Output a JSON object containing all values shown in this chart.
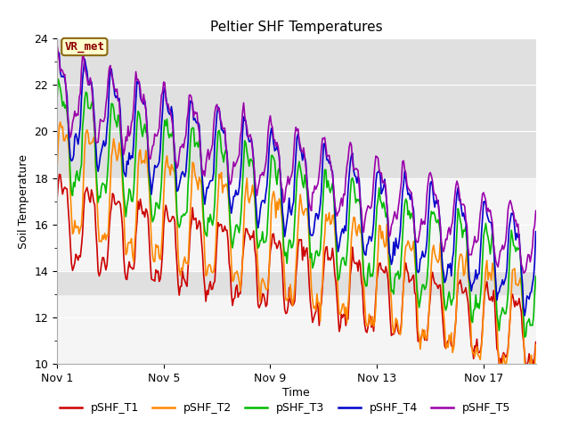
{
  "title": "Peltier SHF Temperatures",
  "ylabel": "Soil Temperature",
  "xlabel": "Time",
  "ylim": [
    10,
    24
  ],
  "yticks": [
    10,
    12,
    14,
    16,
    18,
    20,
    22,
    24
  ],
  "legend_labels": [
    "pSHF_T1",
    "pSHF_T2",
    "pSHF_T3",
    "pSHF_T4",
    "pSHF_T5"
  ],
  "line_colors": [
    "#cc0000",
    "#ff8800",
    "#00bb00",
    "#0000cc",
    "#9900aa"
  ],
  "annotation_text": "VR_met",
  "annotation_color": "#8b0000",
  "bg_band1": [
    13,
    14
  ],
  "bg_band2": [
    18,
    24
  ],
  "bg_color": "#e0e0e0",
  "plot_bg": "#f5f5f5",
  "x_tick_labels": [
    "Nov 1",
    "Nov 5",
    "Nov 9",
    "Nov 13",
    "Nov 17"
  ],
  "x_tick_positions": [
    0,
    96,
    192,
    288,
    384
  ],
  "total_points": 432,
  "n_days": 18,
  "points_per_day": 24,
  "title_fontsize": 11,
  "axis_fontsize": 9,
  "legend_fontsize": 9,
  "linewidth": 1.2
}
